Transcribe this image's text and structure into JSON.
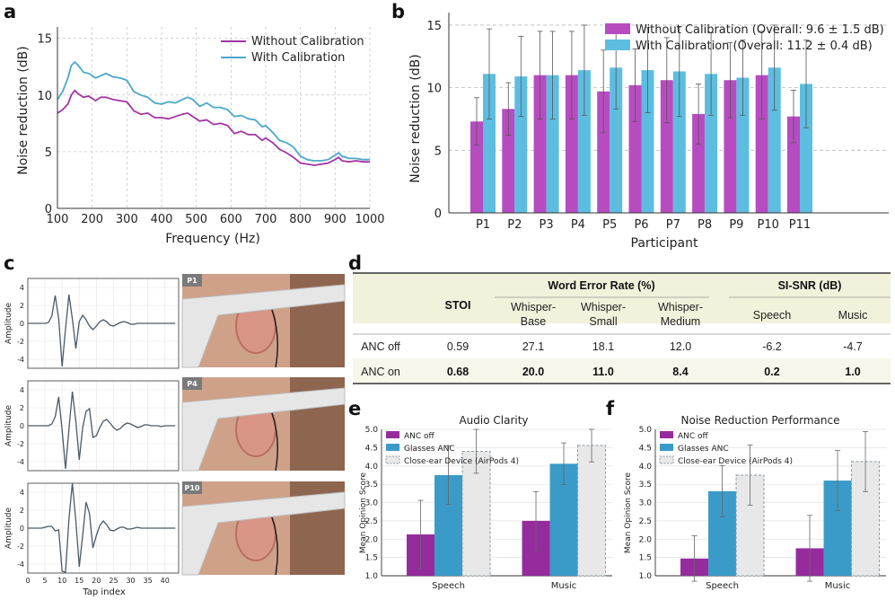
{
  "panels": {
    "a": "a",
    "b": "b",
    "c": "c",
    "d": "d",
    "e": "e",
    "f": "f"
  },
  "colors": {
    "without": "#a334a3",
    "with": "#4aa8c8",
    "purple_bar": "#b74cc1",
    "blue_bar": "#5dbde0",
    "anc_off": "#962b9e",
    "glasses_anc": "#3a9bc8",
    "closeear": "#e8e8e8",
    "waveform": "#4a5a68",
    "table_header": "#f1f1dc"
  },
  "chart_data": [
    {
      "id": "a",
      "type": "line",
      "xlabel": "Frequency (Hz)",
      "ylabel": "Noise reduction (dB)",
      "xlim": [
        100,
        1000
      ],
      "ylim": [
        0,
        16
      ],
      "xticks": [
        "100",
        "200",
        "300",
        "400",
        "500",
        "600",
        "700",
        "800",
        "900",
        "1000"
      ],
      "yticks": [
        "0",
        "5",
        "10",
        "15"
      ],
      "grid": true,
      "legend": "top-right",
      "x": [
        100,
        115,
        130,
        140,
        150,
        160,
        175,
        190,
        210,
        225,
        240,
        260,
        280,
        300,
        320,
        340,
        360,
        380,
        400,
        420,
        440,
        460,
        475,
        490,
        510,
        530,
        550,
        570,
        590,
        610,
        630,
        650,
        670,
        690,
        700,
        720,
        740,
        760,
        780,
        800,
        820,
        840,
        860,
        880,
        900,
        910,
        920,
        940,
        960,
        980,
        1000
      ],
      "series": [
        {
          "name": "Without Calibration",
          "values": [
            8.4,
            8.7,
            9.2,
            10.0,
            10.4,
            10.1,
            9.8,
            9.9,
            9.5,
            9.8,
            9.8,
            9.6,
            9.5,
            9.4,
            8.6,
            8.3,
            8.4,
            8.0,
            8.0,
            7.9,
            8.1,
            8.3,
            8.4,
            8.1,
            7.7,
            7.8,
            7.4,
            7.5,
            7.3,
            6.6,
            6.8,
            6.5,
            6.5,
            6.0,
            6.2,
            5.8,
            5.2,
            4.9,
            4.5,
            4.0,
            3.9,
            3.8,
            3.9,
            4.0,
            4.3,
            4.5,
            4.2,
            4.1,
            4.2,
            4.1,
            4.1
          ]
        },
        {
          "name": "With Calibration",
          "values": [
            9.6,
            10.3,
            11.5,
            12.6,
            12.9,
            12.6,
            12.0,
            11.9,
            11.5,
            11.7,
            11.9,
            11.6,
            11.5,
            11.3,
            10.3,
            10.0,
            9.8,
            9.3,
            9.2,
            9.4,
            9.3,
            9.6,
            9.8,
            9.6,
            9.0,
            9.3,
            8.9,
            8.9,
            8.7,
            8.1,
            8.2,
            7.9,
            7.8,
            7.2,
            7.3,
            6.7,
            6.0,
            5.8,
            5.4,
            4.6,
            4.3,
            4.2,
            4.2,
            4.3,
            4.7,
            4.9,
            4.6,
            4.4,
            4.4,
            4.3,
            4.3
          ]
        }
      ]
    },
    {
      "id": "b",
      "type": "bar",
      "xlabel": "Participant",
      "ylabel": "Noise reduction (dB)",
      "ylim": [
        0,
        16
      ],
      "yticks": [
        "0",
        "5",
        "10",
        "15"
      ],
      "grid": true,
      "legend": "top",
      "categories": [
        "P1",
        "P2",
        "P3",
        "P4",
        "P5",
        "P6",
        "P7",
        "P8",
        "P9",
        "P10",
        "P11"
      ],
      "series": [
        {
          "name": "Without Calibration (Overall: 9.6 ± 1.5 dB)",
          "values": [
            7.3,
            8.3,
            11.0,
            11.0,
            9.7,
            10.2,
            10.6,
            7.9,
            10.6,
            11.0,
            7.7
          ],
          "err": [
            1.9,
            2.1,
            3.5,
            3.5,
            3.3,
            2.9,
            3.4,
            2.4,
            3.0,
            3.5,
            2.1
          ]
        },
        {
          "name": "With Calibration (Overall: 11.2 ± 0.4 dB)",
          "values": [
            11.1,
            10.9,
            11.0,
            11.4,
            11.6,
            11.4,
            11.3,
            11.1,
            10.8,
            11.6,
            10.3
          ],
          "err": [
            3.6,
            3.2,
            3.5,
            3.6,
            3.3,
            3.4,
            3.6,
            3.3,
            3.0,
            3.4,
            3.5
          ]
        }
      ]
    },
    {
      "id": "c",
      "type": "line",
      "xlabel": "Tap index",
      "ylabel": "Amplitude",
      "xlim": [
        0,
        44
      ],
      "ylim": [
        -5,
        5
      ],
      "xticks": [
        "0",
        "5",
        "10",
        "15",
        "20",
        "25",
        "30",
        "35",
        "40"
      ],
      "yticks": [
        "-4",
        "-2",
        "0",
        "2",
        "4"
      ],
      "grid": true,
      "series": [
        {
          "name": "P1",
          "values": [
            0,
            0,
            0,
            0,
            0,
            0,
            0.1,
            0.8,
            3.1,
            0.5,
            -4.8,
            -0.6,
            3.2,
            0.5,
            -2.8,
            0.2,
            0.9,
            0.4,
            -0.3,
            -0.7,
            -0.3,
            0.2,
            0.4,
            0.2,
            -0.2,
            -0.3,
            -0.1,
            0.1,
            0.2,
            0.1,
            -0.1,
            -0.1,
            0,
            0,
            0,
            0,
            0,
            0,
            0,
            0,
            0,
            0,
            0,
            0
          ]
        },
        {
          "name": "P4",
          "values": [
            0,
            0,
            0,
            0,
            0,
            0,
            0,
            0.2,
            1.0,
            3.2,
            -0.5,
            -4.8,
            -0.4,
            3.8,
            0.5,
            -3.8,
            -0.2,
            1.6,
            1.9,
            -1.3,
            -1.1,
            -0.2,
            0.5,
            0.7,
            0.3,
            -0.2,
            -0.5,
            -0.3,
            0.1,
            0.3,
            0.2,
            0,
            -0.2,
            -0.1,
            0.1,
            0.1,
            0,
            0,
            0,
            -0.1,
            0,
            0,
            0,
            0
          ]
        },
        {
          "name": "P10",
          "values": [
            0,
            0,
            0,
            0,
            0,
            0.1,
            0.2,
            0.2,
            -0.3,
            -0.2,
            -4.8,
            -4.9,
            1.0,
            5.0,
            0.8,
            -4.3,
            -0.8,
            2.9,
            1.6,
            -2.2,
            -0.8,
            0.3,
            0.8,
            0.4,
            -0.2,
            -0.3,
            -0.1,
            0.1,
            0.1,
            -0.1,
            -0.1,
            0,
            0.1,
            0,
            0,
            0,
            0,
            0,
            0,
            0,
            0,
            0,
            0,
            0
          ]
        }
      ]
    },
    {
      "id": "e",
      "type": "bar",
      "title": "Audio Clarity",
      "ylabel": "Mean Opinion Score",
      "ylim": [
        1.0,
        5.0
      ],
      "yticks": [
        "1.0",
        "1.5",
        "2.0",
        "2.5",
        "3.0",
        "3.5",
        "4.0",
        "4.5",
        "5.0"
      ],
      "categories": [
        "Speech",
        "Music"
      ],
      "legend": "top-left",
      "series": [
        {
          "name": "ANC off",
          "values": [
            2.13,
            2.5
          ],
          "err": [
            0.93,
            0.8
          ]
        },
        {
          "name": "Glasses ANC",
          "values": [
            3.75,
            4.06
          ],
          "err": [
            0.8,
            0.57
          ]
        },
        {
          "name": "Close-ear Device (AirPods 4)",
          "values": [
            4.4,
            4.56
          ],
          "err": [
            0.6,
            0.45
          ]
        }
      ]
    },
    {
      "id": "f",
      "type": "bar",
      "title": "Noise Reduction Performance",
      "ylabel": "Mean Opinion Score",
      "ylim": [
        1.0,
        5.0
      ],
      "yticks": [
        "1.0",
        "1.5",
        "2.0",
        "2.5",
        "3.0",
        "3.5",
        "4.0",
        "4.5",
        "5.0"
      ],
      "categories": [
        "Speech",
        "Music"
      ],
      "legend": "top-left",
      "series": [
        {
          "name": "ANC off",
          "values": [
            1.47,
            1.75
          ],
          "err": [
            0.62,
            0.9
          ]
        },
        {
          "name": "Glasses ANC",
          "values": [
            3.31,
            3.6
          ],
          "err": [
            0.7,
            0.82
          ]
        },
        {
          "name": "Close-ear Device (AirPods 4)",
          "values": [
            3.75,
            4.12
          ],
          "err": [
            0.82,
            0.82
          ]
        }
      ]
    },
    {
      "id": "d",
      "type": "table",
      "header_groups": [
        "Word Error Rate (%)",
        "SI-SNR (dB)"
      ],
      "columns": [
        "",
        "STOI",
        "Whisper-\nBase",
        "Whisper-\nSmall",
        "Whisper-\nMedium",
        "Speech",
        "Music"
      ],
      "rows": [
        {
          "label": "ANC off",
          "cells": [
            "0.59",
            "27.1",
            "18.1",
            "12.0",
            "-6.2",
            "-4.7"
          ]
        },
        {
          "label": "ANC on",
          "cells": [
            "0.68",
            "20.0",
            "11.0",
            "8.4",
            "0.2",
            "1.0"
          ]
        }
      ]
    }
  ],
  "photos": [
    {
      "tag": "P1"
    },
    {
      "tag": "P4"
    },
    {
      "tag": "P10"
    }
  ]
}
